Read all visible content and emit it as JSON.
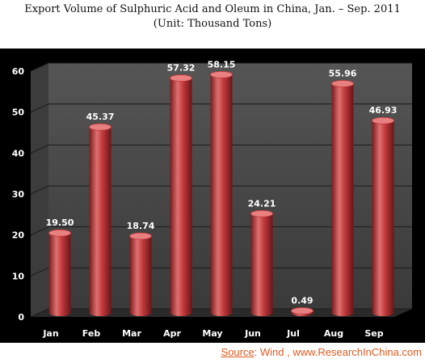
{
  "header": {
    "title": "Export Volume of Sulphuric Acid and Oleum in China, Jan. – Sep. 2011",
    "subtitle": "(Unit: Thousand Tons)"
  },
  "footer": {
    "source_label": "Source",
    "source_rest": ": Wind , www.ResearchInChina.com"
  },
  "colors": {
    "bar": "#c0393b",
    "bar_dark": "#7a1a1c",
    "bar_light": "#e88080",
    "wall": "#4a4a4a",
    "floor": "#2a2a2a",
    "grid": "#1a1a1a",
    "background": "#000000"
  },
  "chart_data": {
    "type": "bar",
    "title": "Export Volume of Sulphuric Acid and Oleum in China, Jan. – Sep. 2011",
    "subtitle": "(Unit: Thousand Tons)",
    "categories": [
      "Jan",
      "Feb",
      "Mar",
      "Apr",
      "May",
      "Jun",
      "Jul",
      "Aug",
      "Sep"
    ],
    "values": [
      19.5,
      45.37,
      18.74,
      57.32,
      58.15,
      24.21,
      0.49,
      55.96,
      46.93
    ],
    "value_labels": [
      "19.50",
      "45.37",
      "18.74",
      "57.32",
      "58.15",
      "24.21",
      "0.49",
      "55.96",
      "46.93"
    ],
    "ylim": [
      0,
      60
    ],
    "yticks": [
      "0",
      "10",
      "20",
      "30",
      "40",
      "50",
      "60"
    ],
    "ytick_values": [
      0,
      10,
      20,
      30,
      40,
      50,
      60
    ],
    "xlabel": "",
    "ylabel": "",
    "grid": true,
    "legend": "none",
    "style": "3d-cylinder"
  }
}
